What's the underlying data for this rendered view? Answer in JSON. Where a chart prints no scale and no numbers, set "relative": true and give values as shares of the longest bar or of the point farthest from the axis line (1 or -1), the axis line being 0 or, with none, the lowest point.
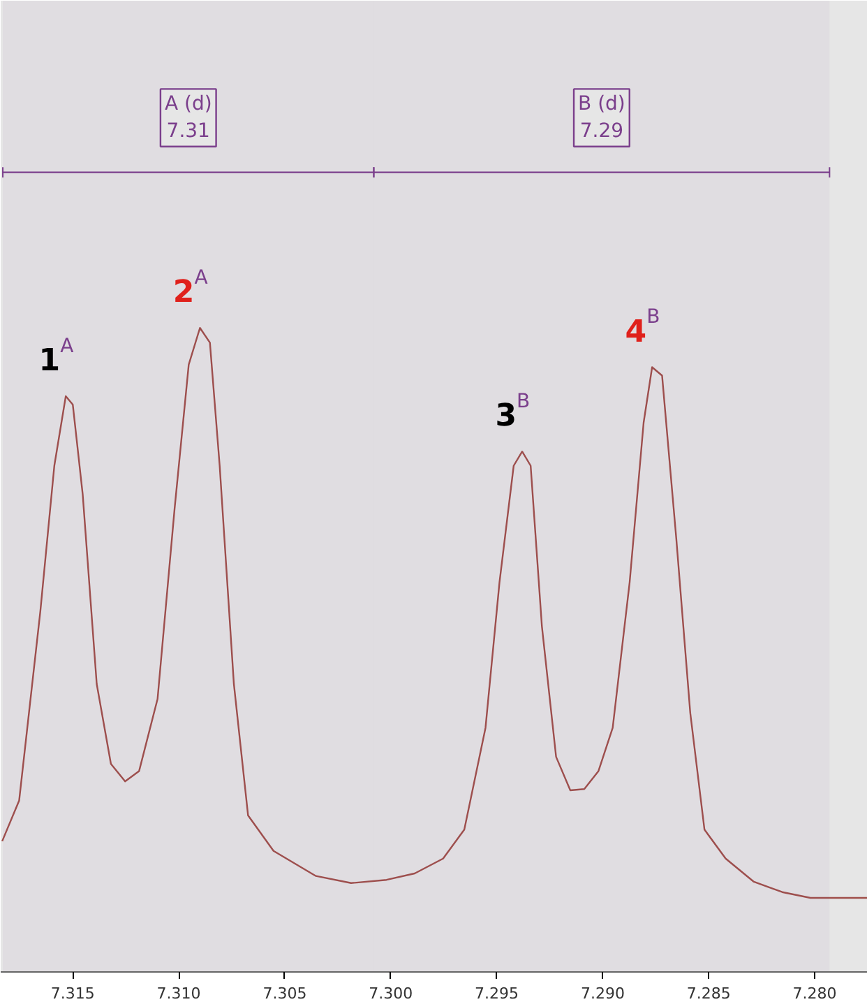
{
  "chart_data": {
    "type": "line",
    "relative": true,
    "x": [
      7.31833,
      7.31753,
      7.31653,
      7.31587,
      7.31533,
      7.315,
      7.31453,
      7.31387,
      7.3132,
      7.31253,
      7.31187,
      7.311,
      7.3102,
      7.30953,
      7.309,
      7.30853,
      7.30807,
      7.3074,
      7.30673,
      7.30553,
      7.30353,
      7.30187,
      7.3002,
      7.29887,
      7.29753,
      7.29653,
      7.29553,
      7.29487,
      7.2942,
      7.2938,
      7.2934,
      7.29287,
      7.2922,
      7.29153,
      7.29087,
      7.2902,
      7.28953,
      7.28873,
      7.28807,
      7.28767,
      7.2872,
      7.28653,
      7.28587,
      7.2852,
      7.2842,
      7.28287,
      7.28153,
      7.2802,
      7.27887,
      7.2775
    ],
    "series": [
      {
        "color": "#a0504a",
        "values": [
          0.203,
          0.266,
          0.56,
          0.786,
          0.894,
          0.881,
          0.741,
          0.447,
          0.323,
          0.296,
          0.312,
          0.424,
          0.718,
          0.943,
          1,
          0.977,
          0.786,
          0.447,
          0.243,
          0.188,
          0.149,
          0.138,
          0.143,
          0.153,
          0.176,
          0.221,
          0.379,
          0.605,
          0.786,
          0.808,
          0.786,
          0.537,
          0.334,
          0.282,
          0.284,
          0.312,
          0.379,
          0.605,
          0.853,
          0.939,
          0.926,
          0.673,
          0.402,
          0.221,
          0.176,
          0.14,
          0.124,
          0.115,
          0.115,
          0.115
        ]
      }
    ],
    "xlim": [
      7.3184,
      7.2775
    ],
    "xticks": [
      7.315,
      {
        "value": 7.31,
        "label": "7.310"
      },
      7.305,
      {
        "value": 7.3,
        "label": "7.300"
      },
      7.295,
      {
        "value": 7.29,
        "label": "7.290"
      },
      7.285,
      {
        "value": 7.28,
        "label": "7.280"
      }
    ],
    "marker": "none",
    "line_style": "solid",
    "bands": [
      {
        "axis": "x",
        "from": 7.3183,
        "to": 7.3008,
        "label": "A (d)\n7.31",
        "color": "#7b3f8c"
      },
      {
        "axis": "x",
        "from": 7.3008,
        "to": 7.2793,
        "label": "B (d)\n7.29",
        "color": "#7b3f8c"
      }
    ],
    "annotations": [
      {
        "text": "1",
        "x": 7.31533,
        "y": 0.894
      },
      {
        "text": "A",
        "x": 7.31533,
        "y": 0.894
      },
      {
        "text": "2",
        "x": 7.309,
        "y": 1
      },
      {
        "text": "A",
        "x": 7.309,
        "y": 1
      },
      {
        "text": "3",
        "x": 7.2938,
        "y": 0.808
      },
      {
        "text": "B",
        "x": 7.2938,
        "y": 0.808
      },
      {
        "text": "4",
        "x": 7.28767,
        "y": 0.939
      },
      {
        "text": "B",
        "x": 7.28767,
        "y": 0.939
      }
    ]
  }
}
